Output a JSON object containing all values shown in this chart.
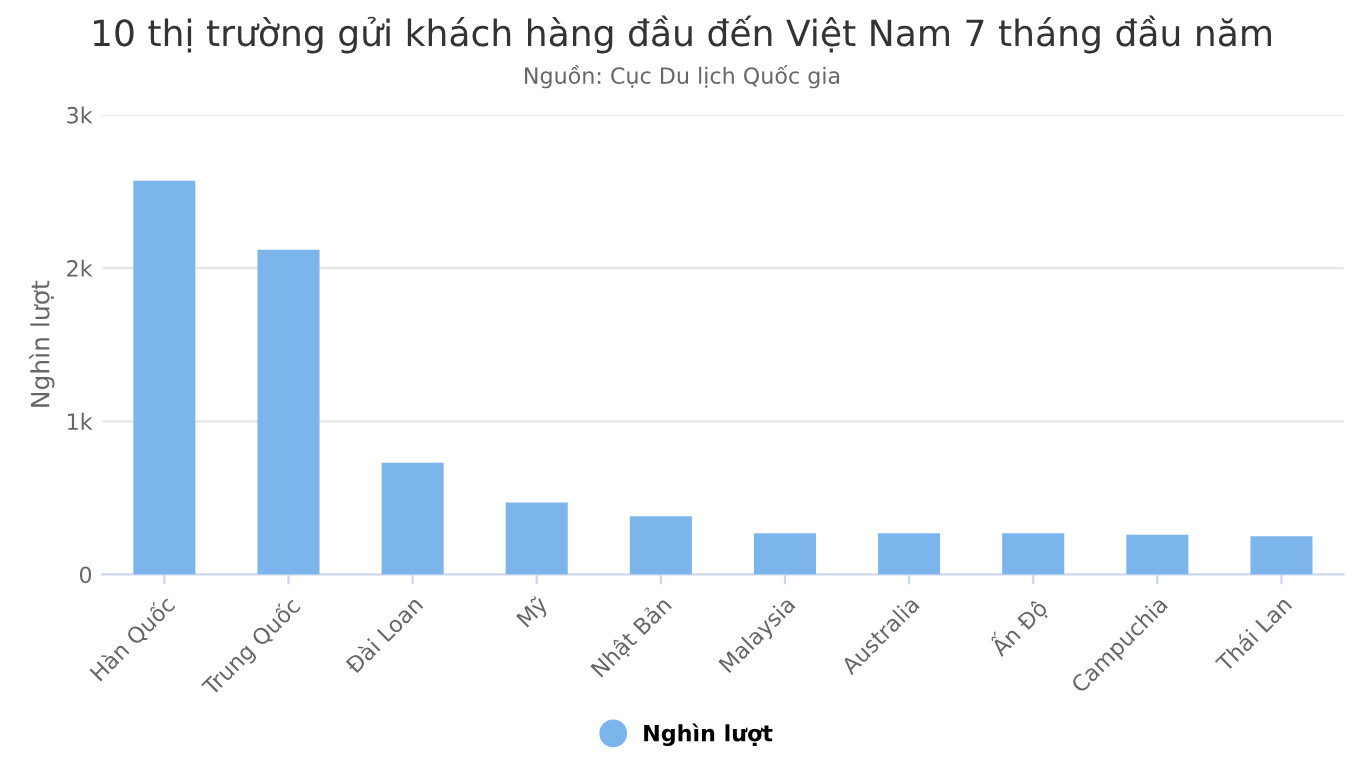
{
  "chart_data": {
    "type": "bar",
    "title": "10 thị trường gửi khách hàng đầu đến Việt Nam 7 tháng đầu năm",
    "subtitle": "Nguồn: Cục Du lịch Quốc gia",
    "ylabel": "Nghìn lượt",
    "categories": [
      "Hàn Quốc",
      "Trung Quốc",
      "Đài Loan",
      "Mỹ",
      "Nhật Bản",
      "Malaysia",
      "Australia",
      "Ấn Độ",
      "Campuchia",
      "Thái Lan"
    ],
    "series": [
      {
        "name": "Nghìn lượt",
        "color": "#7cb5ec",
        "values": [
          2570,
          2120,
          730,
          470,
          380,
          270,
          270,
          270,
          260,
          250
        ]
      }
    ],
    "ylim": [
      0,
      3000
    ],
    "yticks": [
      0,
      {
        "value": 1000,
        "label": "1k"
      },
      {
        "value": 2000,
        "label": "2k"
      },
      {
        "value": 3000,
        "label": "3k"
      }
    ],
    "grid": "y",
    "legend": "bottom"
  }
}
